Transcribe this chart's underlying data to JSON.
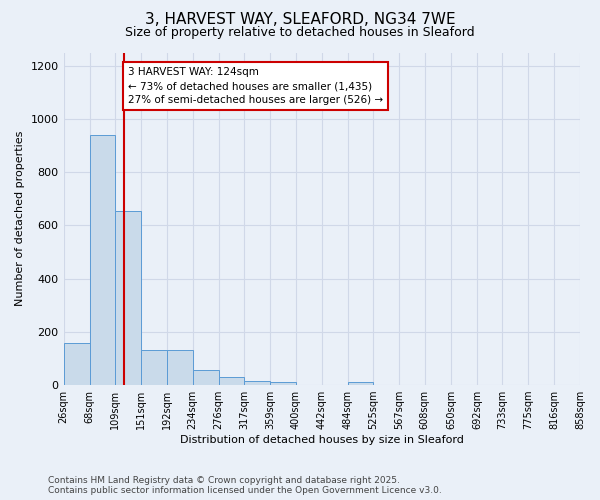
{
  "title_line1": "3, HARVEST WAY, SLEAFORD, NG34 7WE",
  "title_line2": "Size of property relative to detached houses in Sleaford",
  "xlabel": "Distribution of detached houses by size in Sleaford",
  "ylabel": "Number of detached properties",
  "bar_edges": [
    26,
    68,
    109,
    151,
    192,
    234,
    276,
    317,
    359,
    400,
    442,
    484,
    525,
    567,
    608,
    650,
    692,
    733,
    775,
    816,
    858
  ],
  "bar_heights": [
    160,
    940,
    655,
    130,
    130,
    55,
    30,
    15,
    10,
    0,
    0,
    12,
    0,
    0,
    0,
    0,
    0,
    0,
    0,
    0
  ],
  "bar_color": "#c9daea",
  "bar_edgecolor": "#5b9bd5",
  "grid_color": "#d0d8e8",
  "background_color": "#eaf0f8",
  "property_size": 124,
  "annotation_text_line1": "3 HARVEST WAY: 124sqm",
  "annotation_text_line2": "← 73% of detached houses are smaller (1,435)",
  "annotation_text_line3": "27% of semi-detached houses are larger (526) →",
  "annotation_box_color": "#ffffff",
  "annotation_box_edgecolor": "#cc0000",
  "vline_color": "#cc0000",
  "footer_line1": "Contains HM Land Registry data © Crown copyright and database right 2025.",
  "footer_line2": "Contains public sector information licensed under the Open Government Licence v3.0.",
  "ylim": [
    0,
    1250
  ],
  "yticks": [
    0,
    200,
    400,
    600,
    800,
    1000,
    1200
  ],
  "title1_fontsize": 11,
  "title2_fontsize": 9,
  "axis_fontsize": 8,
  "tick_fontsize": 7,
  "annotation_fontsize": 7.5,
  "footer_fontsize": 6.5
}
